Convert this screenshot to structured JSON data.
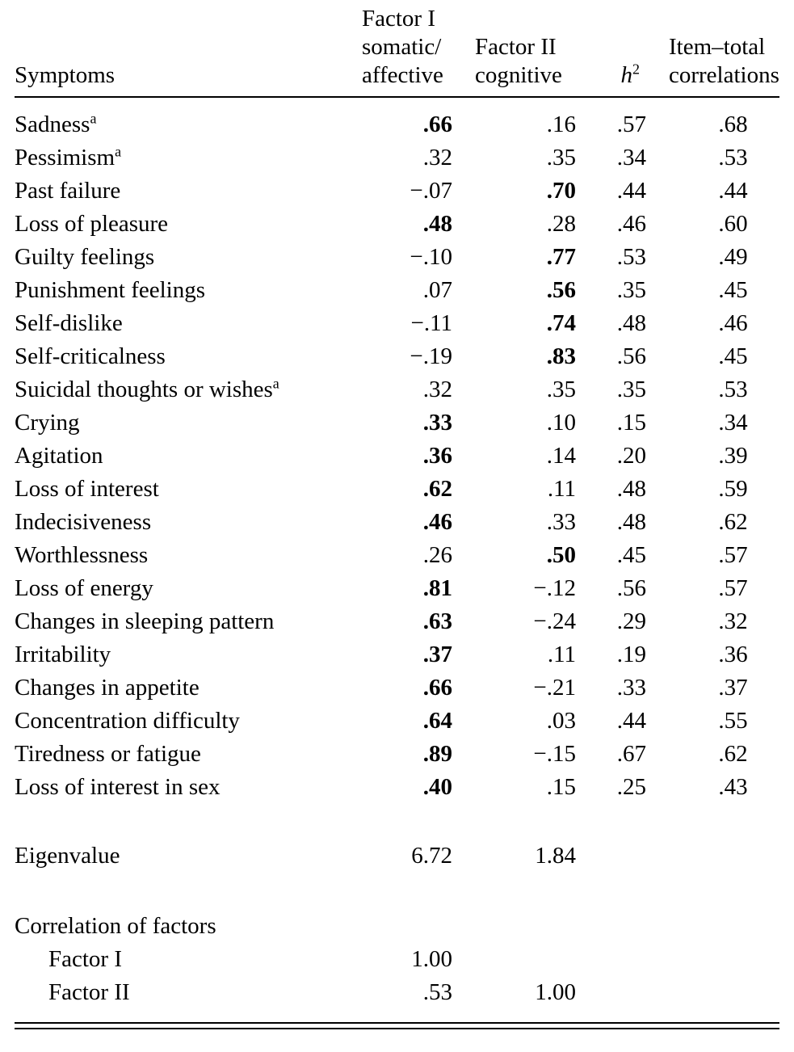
{
  "columns": {
    "symptoms": "Symptoms",
    "factor1": [
      "Factor I",
      "somatic/",
      "affective"
    ],
    "factor2": [
      "Factor II",
      "cognitive"
    ],
    "h2": {
      "base": "h",
      "sup": "2"
    },
    "item_total": [
      "Item–total",
      "correlations"
    ]
  },
  "rows": [
    {
      "symptom": "Sadness",
      "sup": "a",
      "f1": ".66",
      "f1_bold": true,
      "f2": ".16",
      "f2_bold": false,
      "h2": ".57",
      "it": ".68"
    },
    {
      "symptom": "Pessimism",
      "sup": "a",
      "f1": ".32",
      "f1_bold": false,
      "f2": ".35",
      "f2_bold": false,
      "h2": ".34",
      "it": ".53"
    },
    {
      "symptom": "Past failure",
      "sup": "",
      "f1": "−.07",
      "f1_bold": false,
      "f2": ".70",
      "f2_bold": true,
      "h2": ".44",
      "it": ".44"
    },
    {
      "symptom": "Loss of pleasure",
      "sup": "",
      "f1": ".48",
      "f1_bold": true,
      "f2": ".28",
      "f2_bold": false,
      "h2": ".46",
      "it": ".60"
    },
    {
      "symptom": "Guilty feelings",
      "sup": "",
      "f1": "−.10",
      "f1_bold": false,
      "f2": ".77",
      "f2_bold": true,
      "h2": ".53",
      "it": ".49"
    },
    {
      "symptom": "Punishment feelings",
      "sup": "",
      "f1": ".07",
      "f1_bold": false,
      "f2": ".56",
      "f2_bold": true,
      "h2": ".35",
      "it": ".45"
    },
    {
      "symptom": "Self-dislike",
      "sup": "",
      "f1": "−.11",
      "f1_bold": false,
      "f2": ".74",
      "f2_bold": true,
      "h2": ".48",
      "it": ".46"
    },
    {
      "symptom": "Self-criticalness",
      "sup": "",
      "f1": "−.19",
      "f1_bold": false,
      "f2": ".83",
      "f2_bold": true,
      "h2": ".56",
      "it": ".45"
    },
    {
      "symptom": "Suicidal thoughts or wishes",
      "sup": "a",
      "f1": ".32",
      "f1_bold": false,
      "f2": ".35",
      "f2_bold": false,
      "h2": ".35",
      "it": ".53"
    },
    {
      "symptom": "Crying",
      "sup": "",
      "f1": ".33",
      "f1_bold": true,
      "f2": ".10",
      "f2_bold": false,
      "h2": ".15",
      "it": ".34"
    },
    {
      "symptom": "Agitation",
      "sup": "",
      "f1": ".36",
      "f1_bold": true,
      "f2": ".14",
      "f2_bold": false,
      "h2": ".20",
      "it": ".39"
    },
    {
      "symptom": "Loss of interest",
      "sup": "",
      "f1": ".62",
      "f1_bold": true,
      "f2": ".11",
      "f2_bold": false,
      "h2": ".48",
      "it": ".59"
    },
    {
      "symptom": "Indecisiveness",
      "sup": "",
      "f1": ".46",
      "f1_bold": true,
      "f2": ".33",
      "f2_bold": false,
      "h2": ".48",
      "it": ".62"
    },
    {
      "symptom": "Worthlessness",
      "sup": "",
      "f1": ".26",
      "f1_bold": false,
      "f2": ".50",
      "f2_bold": true,
      "h2": ".45",
      "it": ".57"
    },
    {
      "symptom": "Loss of energy",
      "sup": "",
      "f1": ".81",
      "f1_bold": true,
      "f2": "−.12",
      "f2_bold": false,
      "h2": ".56",
      "it": ".57"
    },
    {
      "symptom": "Changes in sleeping pattern",
      "sup": "",
      "f1": ".63",
      "f1_bold": true,
      "f2": "−.24",
      "f2_bold": false,
      "h2": ".29",
      "it": ".32"
    },
    {
      "symptom": "Irritability",
      "sup": "",
      "f1": ".37",
      "f1_bold": true,
      "f2": ".11",
      "f2_bold": false,
      "h2": ".19",
      "it": ".36"
    },
    {
      "symptom": "Changes in appetite",
      "sup": "",
      "f1": ".66",
      "f1_bold": true,
      "f2": "−.21",
      "f2_bold": false,
      "h2": ".33",
      "it": ".37"
    },
    {
      "symptom": "Concentration difficulty",
      "sup": "",
      "f1": ".64",
      "f1_bold": true,
      "f2": ".03",
      "f2_bold": false,
      "h2": ".44",
      "it": ".55"
    },
    {
      "symptom": "Tiredness or fatigue",
      "sup": "",
      "f1": ".89",
      "f1_bold": true,
      "f2": "−.15",
      "f2_bold": false,
      "h2": ".67",
      "it": ".62"
    },
    {
      "symptom": "Loss of interest in sex",
      "sup": "",
      "f1": ".40",
      "f1_bold": true,
      "f2": ".15",
      "f2_bold": false,
      "h2": ".25",
      "it": ".43"
    }
  ],
  "eigenvalue": {
    "label": "Eigenvalue",
    "f1": "6.72",
    "f2": "1.84"
  },
  "correlation": {
    "header": "Correlation of factors",
    "rows": [
      {
        "label": "Factor I",
        "f1": "1.00",
        "f2": ""
      },
      {
        "label": "Factor II",
        "f1": ".53",
        "f2": "1.00"
      }
    ]
  }
}
